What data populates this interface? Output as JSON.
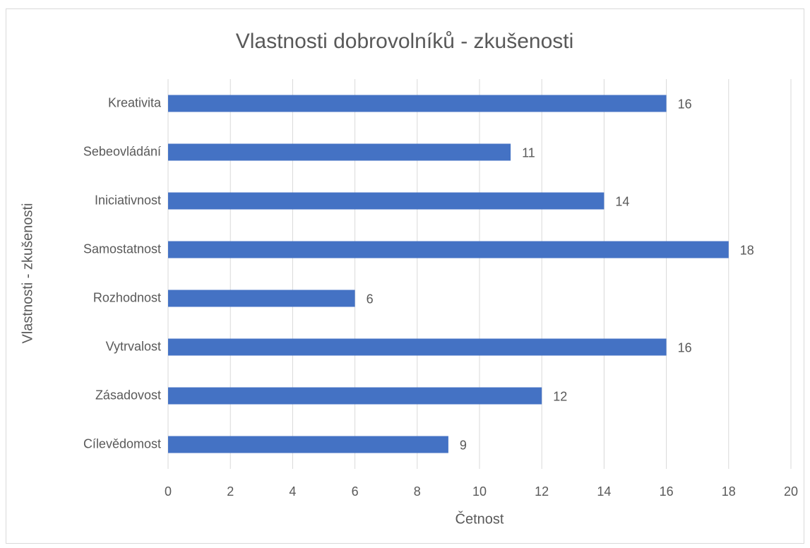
{
  "chart_data": {
    "type": "bar",
    "horizontal": true,
    "title": "Vlastnosti dobrovolníků - zkušenosti",
    "x_label": "Četnost",
    "y_label": "Vlastnosti - zkušenosti",
    "categories": [
      "Kreativita",
      "Sebeovládání",
      "Iniciativnost",
      "Samostatnost",
      "Rozhodnost",
      "Vytrvalost",
      "Zásadovost",
      "Cílevědomost"
    ],
    "values": [
      16,
      11,
      14,
      18,
      6,
      16,
      12,
      9
    ],
    "color": "#4472c4",
    "xlim": [
      0,
      20
    ],
    "xticks": [
      0,
      2,
      4,
      6,
      8,
      10,
      12,
      14,
      16,
      18,
      20
    ],
    "grid": true
  }
}
